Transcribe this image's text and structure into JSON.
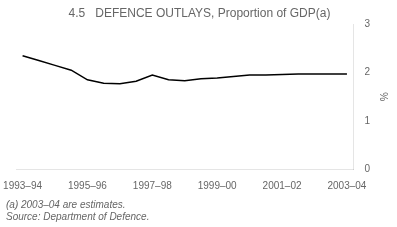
{
  "chart_data": {
    "type": "line",
    "title": "4.5   DEFENCE OUTLAYS, Proportion of GDP(a)",
    "ylabel": "%",
    "annotations": [
      "(a) 2003–04 are estimates.",
      "Source: Department of Defence."
    ],
    "x": [
      0,
      0.5,
      1,
      1.5,
      2,
      2.5,
      3,
      3.5,
      4,
      4.5,
      5,
      5.5,
      6,
      6.5,
      7,
      7.5,
      8,
      8.5,
      9,
      9.5,
      10
    ],
    "values": [
      2.35,
      2.25,
      2.15,
      2.05,
      1.85,
      1.78,
      1.77,
      1.82,
      1.95,
      1.85,
      1.83,
      1.87,
      1.89,
      1.92,
      1.95,
      1.95,
      1.96,
      1.97,
      1.97,
      1.97,
      1.97
    ],
    "color": "#000000",
    "xlim": [
      -0.2,
      10.2
    ],
    "xticks": [
      {
        "value": 0,
        "label": "1993–94"
      },
      {
        "value": 2,
        "label": "1995–96"
      },
      {
        "value": 4,
        "label": "1997–98"
      },
      {
        "value": 6,
        "label": "1999–00"
      },
      {
        "value": 8,
        "label": "2001–02"
      },
      {
        "value": 10,
        "label": "2003–04"
      }
    ],
    "ylim": [
      0,
      3
    ],
    "yticks": [
      0,
      1,
      2,
      3
    ],
    "grid": false
  }
}
